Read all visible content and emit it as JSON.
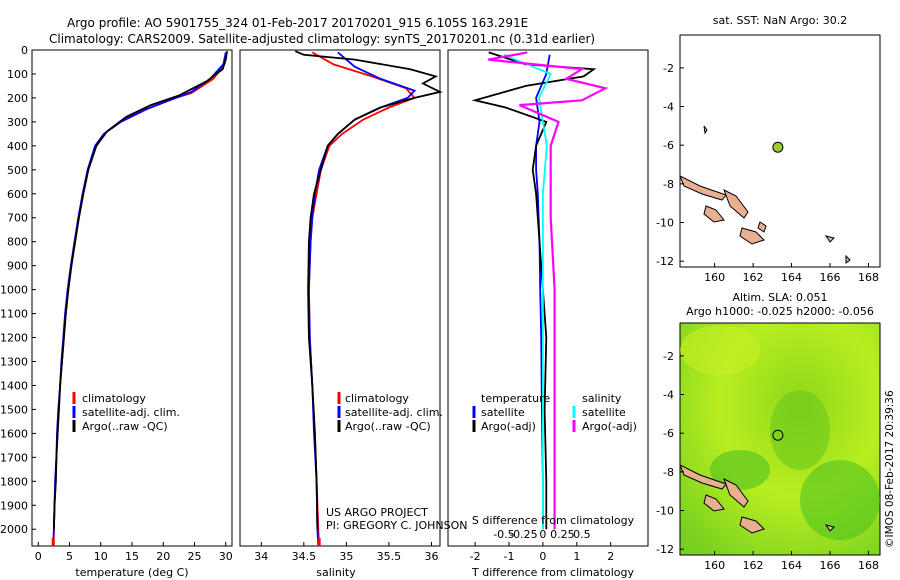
{
  "header": {
    "line1": "Argo profile: AO 5901755_324 01-Feb-2017 20170201_915 6.105S 163.291E",
    "line2": "Climatology: CARS2009. Satellite-adjusted climatology: synTS_20170201.nc (0.31d earlier)"
  },
  "colors": {
    "climatology": "#ff0000",
    "satellite": "#0000ff",
    "argo": "#000000",
    "sal_satellite": "#00ffff",
    "sal_argo": "#ff00ff",
    "land": "#e8b090"
  },
  "depth_axis": {
    "range": [
      0,
      2070
    ],
    "ticks": [
      0,
      100,
      200,
      300,
      400,
      500,
      600,
      700,
      800,
      900,
      1000,
      1100,
      1200,
      1300,
      1400,
      1500,
      1600,
      1700,
      1800,
      1900,
      2000
    ]
  },
  "chart_data": [
    {
      "id": "temperature",
      "type": "line",
      "xlabel": "temperature (deg C)",
      "ylabel": "depth",
      "xlim": [
        -1,
        31
      ],
      "ylim": [
        2070,
        0
      ],
      "xticks": [
        0,
        5,
        10,
        15,
        20,
        25,
        30
      ],
      "xtick_labels": [
        "0",
        "5",
        "10",
        "15",
        "20",
        "25",
        "30"
      ],
      "legend": [
        "climatology",
        "satellite-adj. clim.",
        "Argo(..raw -QC)"
      ],
      "series": [
        {
          "name": "climatology",
          "color": "#ff0000",
          "points": [
            [
              30,
              10
            ],
            [
              29.8,
              60
            ],
            [
              28,
              120
            ],
            [
              24.5,
              180
            ],
            [
              22,
              200
            ],
            [
              17,
              250
            ],
            [
              13,
              300
            ],
            [
              10.5,
              350
            ],
            [
              9.2,
              400
            ],
            [
              8,
              500
            ],
            [
              7.2,
              600
            ],
            [
              6.5,
              700
            ],
            [
              5.9,
              800
            ],
            [
              5.3,
              900
            ],
            [
              4.8,
              1000
            ],
            [
              4.4,
              1100
            ],
            [
              4.1,
              1200
            ],
            [
              3.8,
              1300
            ],
            [
              3.5,
              1400
            ],
            [
              3.3,
              1500
            ],
            [
              3.1,
              1600
            ],
            [
              2.9,
              1700
            ],
            [
              2.8,
              1800
            ],
            [
              2.6,
              1900
            ],
            [
              2.5,
              2000
            ],
            [
              2.4,
              2070
            ]
          ]
        },
        {
          "name": "satellite-adj. clim.",
          "color": "#0000ff",
          "points": [
            [
              30,
              10
            ],
            [
              29.6,
              60
            ],
            [
              27.5,
              120
            ],
            [
              24.5,
              175
            ],
            [
              22.5,
              195
            ],
            [
              17.5,
              245
            ],
            [
              13.2,
              300
            ],
            [
              10.5,
              350
            ],
            [
              9.1,
              400
            ],
            [
              7.9,
              500
            ],
            [
              7.1,
              600
            ],
            [
              6.4,
              700
            ],
            [
              5.8,
              800
            ],
            [
              5.2,
              900
            ],
            [
              4.7,
              1000
            ],
            [
              4.3,
              1100
            ],
            [
              4,
              1200
            ],
            [
              3.7,
              1300
            ],
            [
              3.5,
              1400
            ],
            [
              3.2,
              1500
            ],
            [
              3,
              1600
            ],
            [
              2.9,
              1700
            ],
            [
              2.7,
              1800
            ],
            [
              2.6,
              1900
            ],
            [
              2.5,
              2000
            ],
            [
              2.4,
              2070
            ]
          ]
        },
        {
          "name": "Argo",
          "color": "#000000",
          "points": [
            [
              30.2,
              5
            ],
            [
              30,
              40
            ],
            [
              29.5,
              80
            ],
            [
              27,
              130
            ],
            [
              24,
              170
            ],
            [
              22.5,
              190
            ],
            [
              18,
              230
            ],
            [
              14,
              280
            ],
            [
              11,
              340
            ],
            [
              9.3,
              400
            ],
            [
              8,
              500
            ],
            [
              7.2,
              600
            ],
            [
              6.5,
              700
            ],
            [
              5.9,
              800
            ],
            [
              5.3,
              900
            ],
            [
              4.8,
              1000
            ],
            [
              4.4,
              1100
            ],
            [
              4.1,
              1200
            ],
            [
              3.8,
              1300
            ],
            [
              3.5,
              1400
            ],
            [
              3.3,
              1500
            ],
            [
              3.1,
              1600
            ],
            [
              2.9,
              1700
            ],
            [
              2.8,
              1800
            ],
            [
              2.6,
              1900
            ],
            [
              2.5,
              2000
            ]
          ]
        }
      ]
    },
    {
      "id": "salinity",
      "type": "line",
      "xlabel": "salinity",
      "ylabel": "depth",
      "xlim": [
        33.75,
        36.1
      ],
      "ylim": [
        2070,
        0
      ],
      "xticks": [
        34,
        34.5,
        35,
        35.5,
        36
      ],
      "xtick_labels": [
        "34",
        "34.5",
        "35",
        "35.5",
        "36"
      ],
      "legend": [
        "climatology",
        "satellite-adj. clim.",
        "Argo(..raw -QC)"
      ],
      "annotation": [
        "US ARGO PROJECT",
        "PI: GREGORY C. JOHNSON"
      ],
      "series": [
        {
          "name": "climatology",
          "color": "#ff0000",
          "points": [
            [
              34.6,
              10
            ],
            [
              34.85,
              60
            ],
            [
              35.3,
              110
            ],
            [
              35.7,
              160
            ],
            [
              35.8,
              200
            ],
            [
              35.5,
              240
            ],
            [
              35.2,
              290
            ],
            [
              34.95,
              350
            ],
            [
              34.8,
              400
            ],
            [
              34.7,
              500
            ],
            [
              34.65,
              600
            ],
            [
              34.6,
              700
            ],
            [
              34.58,
              800
            ],
            [
              34.56,
              1000
            ],
            [
              34.57,
              1200
            ],
            [
              34.6,
              1400
            ],
            [
              34.63,
              1600
            ],
            [
              34.65,
              1800
            ],
            [
              34.67,
              2000
            ],
            [
              34.68,
              2070
            ]
          ]
        },
        {
          "name": "satellite-adj. clim.",
          "color": "#0000ff",
          "points": [
            [
              34.9,
              10
            ],
            [
              35.1,
              70
            ],
            [
              35.4,
              120
            ],
            [
              35.8,
              170
            ],
            [
              35.72,
              200
            ],
            [
              35.4,
              240
            ],
            [
              35.1,
              290
            ],
            [
              34.9,
              350
            ],
            [
              34.78,
              400
            ],
            [
              34.68,
              500
            ],
            [
              34.63,
              600
            ],
            [
              34.6,
              700
            ],
            [
              34.58,
              800
            ],
            [
              34.56,
              1000
            ],
            [
              34.57,
              1200
            ],
            [
              34.6,
              1400
            ],
            [
              34.62,
              1600
            ],
            [
              34.65,
              1800
            ],
            [
              34.66,
              2000
            ],
            [
              34.67,
              2070
            ]
          ]
        },
        {
          "name": "Argo",
          "color": "#000000",
          "points": [
            [
              34.4,
              5
            ],
            [
              34.5,
              20
            ],
            [
              35.1,
              40
            ],
            [
              35.75,
              80
            ],
            [
              36.05,
              110
            ],
            [
              35.9,
              140
            ],
            [
              36.1,
              175
            ],
            [
              35.8,
              200
            ],
            [
              35.4,
              240
            ],
            [
              35.1,
              290
            ],
            [
              34.9,
              350
            ],
            [
              34.78,
              400
            ],
            [
              34.7,
              500
            ],
            [
              34.62,
              600
            ],
            [
              34.58,
              700
            ],
            [
              34.56,
              800
            ],
            [
              34.55,
              1000
            ],
            [
              34.56,
              1200
            ],
            [
              34.6,
              1400
            ],
            [
              34.63,
              1600
            ],
            [
              34.65,
              1800
            ],
            [
              34.66,
              2000
            ]
          ]
        }
      ]
    },
    {
      "id": "difference",
      "type": "line",
      "xlabel": "T difference from climatology",
      "xlabel_top": "S difference from climatology",
      "xlim": [
        -2.8,
        3.1
      ],
      "ylim": [
        2070,
        0
      ],
      "xticks": [
        -2,
        -1,
        0,
        1,
        2
      ],
      "xtick_labels": [
        "-2",
        "-1",
        "0",
        "1",
        "2"
      ],
      "sal_ticks": [
        -0.5,
        -0.25,
        0,
        0.25,
        0.5
      ],
      "sal_tick_labels": [
        "-0.5",
        "-0.25",
        "0",
        "0.25",
        "0.5"
      ],
      "legend_headers": [
        "temperature",
        "salinity"
      ],
      "legend": [
        "satellite",
        "Argo(-adj)",
        "satellite",
        "Argo(-adj)"
      ],
      "series": [
        {
          "name": "T satellite",
          "color": "#0000ff",
          "points": [
            [
              0.2,
              20
            ],
            [
              0.1,
              100
            ],
            [
              -0.2,
              200
            ],
            [
              -0.1,
              300
            ],
            [
              -0.2,
              400
            ],
            [
              -0.2,
              500
            ],
            [
              -0.15,
              600
            ],
            [
              -0.1,
              800
            ],
            [
              -0.08,
              1000
            ],
            [
              -0.05,
              1200
            ],
            [
              -0.03,
              1500
            ],
            [
              0,
              1800
            ],
            [
              0,
              2000
            ]
          ]
        },
        {
          "name": "T Argo",
          "color": "#000000",
          "points": [
            [
              -1.6,
              10
            ],
            [
              -0.5,
              60
            ],
            [
              1.5,
              80
            ],
            [
              1.2,
              110
            ],
            [
              -0.5,
              150
            ],
            [
              -2.0,
              210
            ],
            [
              -1.1,
              240
            ],
            [
              0.1,
              300
            ],
            [
              -0.2,
              400
            ],
            [
              -0.3,
              500
            ],
            [
              -0.2,
              600
            ],
            [
              -0.1,
              800
            ],
            [
              0,
              1000
            ],
            [
              0.1,
              1200
            ],
            [
              0.05,
              1500
            ],
            [
              0.1,
              1800
            ],
            [
              0.1,
              2000
            ]
          ]
        },
        {
          "name": "S satellite",
          "color": "#00ffff",
          "points": [
            [
              -0.5,
              20
            ],
            [
              -0.2,
              60
            ],
            [
              0.1,
              100
            ],
            [
              -0.05,
              200
            ],
            [
              0,
              300
            ],
            [
              0.05,
              400
            ],
            [
              0,
              600
            ],
            [
              0,
              1000
            ],
            [
              0,
              1500
            ],
            [
              0,
              2000
            ]
          ]
        },
        {
          "name": "S Argo",
          "color": "#ff00ff",
          "points": [
            [
              -0.2,
              10
            ],
            [
              -0.7,
              40
            ],
            [
              0.5,
              80
            ],
            [
              0.3,
              120
            ],
            [
              0.8,
              160
            ],
            [
              0.5,
              210
            ],
            [
              -0.3,
              230
            ],
            [
              0.2,
              300
            ],
            [
              0.1,
              400
            ],
            [
              0.1,
              700
            ],
            [
              0.15,
              1000
            ],
            [
              0.15,
              1500
            ],
            [
              0.15,
              2000
            ]
          ]
        }
      ]
    },
    {
      "id": "sst_map",
      "type": "map",
      "title": "sat. SST: NaN Argo: 30.2",
      "xlim": [
        158.2,
        168.6
      ],
      "ylim": [
        -12.3,
        -0.3
      ],
      "xticks": [
        160,
        162,
        164,
        166,
        168
      ],
      "yticks": [
        -2,
        -4,
        -6,
        -8,
        -10,
        -12
      ],
      "xtick_labels": [
        "160",
        "162",
        "164",
        "166",
        "168"
      ],
      "ytick_labels": [
        "-2",
        "-4",
        "-6",
        "-8",
        "-10",
        "-12"
      ],
      "float_position": {
        "lon": 163.291,
        "lat": -6.105
      }
    },
    {
      "id": "sla_map",
      "type": "map",
      "title": "Altim. SLA: 0.051",
      "subtitle": "Argo h1000: -0.025 h2000: -0.056",
      "xlim": [
        158.2,
        168.6
      ],
      "ylim": [
        -12.3,
        -0.3
      ],
      "xticks": [
        160,
        162,
        164,
        166,
        168
      ],
      "yticks": [
        -2,
        -4,
        -6,
        -8,
        -10,
        -12
      ],
      "xtick_labels": [
        "160",
        "162",
        "164",
        "166",
        "168"
      ],
      "ytick_labels": [
        "-2",
        "-4",
        "-6",
        "-8",
        "-10",
        "-12"
      ],
      "float_position": {
        "lon": 163.291,
        "lat": -6.105
      }
    }
  ],
  "credit": "©IMOS 08-Feb-2017 20:39:36"
}
